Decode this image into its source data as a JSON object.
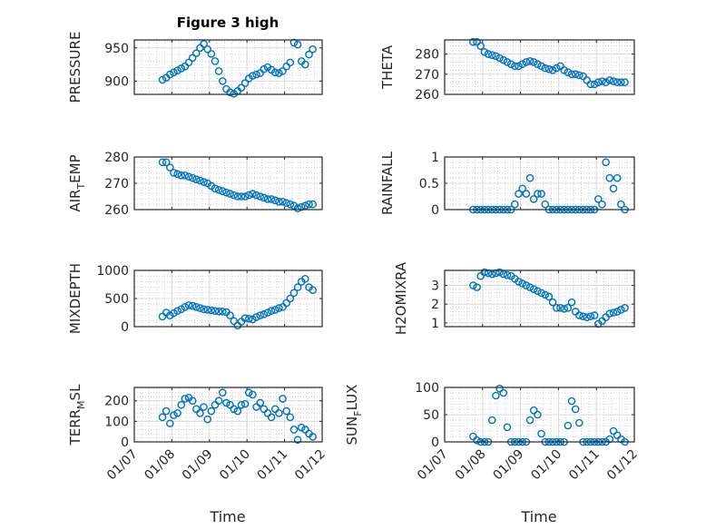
{
  "title": "Figure 3 high",
  "xlabel": "Time",
  "marker_color": "#0072BD",
  "chart_data": {
    "type": "scatter",
    "x_unit": "day of month (January)",
    "xlim": [
      7,
      12
    ],
    "xticks": [
      7,
      8,
      9,
      10,
      11,
      12
    ],
    "xtick_labels": [
      "01/07",
      "01/08",
      "01/09",
      "01/10",
      "01/11",
      "01/12"
    ],
    "x": [
      7.75,
      7.85,
      7.95,
      8.05,
      8.15,
      8.25,
      8.35,
      8.45,
      8.55,
      8.65,
      8.75,
      8.85,
      8.95,
      9.05,
      9.15,
      9.25,
      9.35,
      9.45,
      9.55,
      9.65,
      9.75,
      9.85,
      9.95,
      10.05,
      10.15,
      10.25,
      10.35,
      10.45,
      10.55,
      10.65,
      10.75,
      10.85,
      10.95,
      11.05,
      11.15,
      11.25,
      11.35,
      11.45,
      11.55,
      11.65,
      11.75
    ],
    "panels": [
      {
        "id": "pressure",
        "ylabel": [
          "PRESSURE",
          "",
          ""
        ],
        "ylim": [
          880,
          962
        ],
        "yticks": [
          900,
          950
        ],
        "ytick_labels": [
          "900",
          "950"
        ],
        "y": [
          902,
          905,
          910,
          913,
          916,
          919,
          922,
          928,
          935,
          942,
          950,
          956,
          948,
          941,
          930,
          915,
          900,
          888,
          883,
          881,
          885,
          890,
          897,
          904,
          908,
          910,
          912,
          918,
          921,
          917,
          913,
          912,
          915,
          922,
          928,
          958,
          955,
          930,
          925,
          940,
          948
        ]
      },
      {
        "id": "theta",
        "ylabel": [
          "THETA",
          "",
          ""
        ],
        "ylim": [
          260,
          287
        ],
        "yticks": [
          260,
          270,
          280
        ],
        "ytick_labels": [
          "260",
          "270",
          "280"
        ],
        "y": [
          286,
          286,
          284,
          281,
          280,
          279.5,
          279,
          278,
          277,
          276,
          275,
          274,
          274,
          275,
          276,
          276.5,
          276,
          275,
          274,
          273,
          272.5,
          272,
          273,
          274,
          272,
          271,
          270,
          270,
          269.5,
          269,
          267,
          265,
          265,
          266,
          266.5,
          266,
          267,
          266.5,
          266,
          266,
          266
        ]
      },
      {
        "id": "air-temp",
        "ylabel": [
          "AIR",
          "T",
          "EMP"
        ],
        "ylim": [
          260,
          280
        ],
        "yticks": [
          260,
          270,
          280
        ],
        "ytick_labels": [
          "260",
          "270",
          "280"
        ],
        "y": [
          278,
          278,
          276,
          274,
          273.5,
          273,
          273,
          272.5,
          272,
          271.5,
          271,
          270.5,
          270,
          269,
          268,
          267.5,
          267,
          266.5,
          266,
          265.5,
          265,
          265,
          265,
          265.5,
          266,
          265.5,
          265,
          264.5,
          264,
          264,
          263.5,
          263,
          263,
          262.5,
          262,
          261.5,
          260.5,
          261,
          261.5,
          262,
          262
        ]
      },
      {
        "id": "rainfall",
        "ylabel": [
          "RAINFALL",
          "",
          ""
        ],
        "ylim": [
          0,
          1
        ],
        "yticks": [
          0,
          0.5,
          1
        ],
        "ytick_labels": [
          "0",
          "0.5",
          "1"
        ],
        "y": [
          0,
          0,
          0,
          0,
          0,
          0,
          0,
          0,
          0,
          0,
          0,
          0.1,
          0.3,
          0.4,
          0.3,
          0.6,
          0.2,
          0.3,
          0.3,
          0.1,
          0,
          0,
          0,
          0,
          0,
          0,
          0,
          0,
          0,
          0,
          0,
          0,
          0,
          0.2,
          0.1,
          0.9,
          0.6,
          0.4,
          0.6,
          0.1,
          0
        ]
      },
      {
        "id": "mixdepth",
        "ylabel": [
          "MIXDEPTH",
          "",
          ""
        ],
        "ylim": [
          0,
          1000
        ],
        "yticks": [
          0,
          500,
          1000
        ],
        "ytick_labels": [
          "0",
          "500",
          "1000"
        ],
        "y": [
          180,
          250,
          200,
          240,
          280,
          310,
          350,
          380,
          370,
          350,
          330,
          310,
          300,
          290,
          280,
          270,
          270,
          260,
          200,
          100,
          20,
          90,
          150,
          140,
          130,
          170,
          200,
          220,
          250,
          280,
          300,
          330,
          350,
          420,
          500,
          600,
          700,
          800,
          850,
          700,
          650
        ]
      },
      {
        "id": "h2omixra",
        "ylabel": [
          "H2OMIXRA",
          "",
          ""
        ],
        "ylim": [
          0.8,
          3.8
        ],
        "yticks": [
          1,
          2,
          3
        ],
        "ytick_labels": [
          "1",
          "2",
          "3"
        ],
        "y": [
          3.0,
          2.9,
          3.5,
          3.7,
          3.65,
          3.6,
          3.65,
          3.7,
          3.6,
          3.55,
          3.5,
          3.35,
          3.2,
          3.1,
          3.0,
          2.9,
          2.8,
          2.7,
          2.6,
          2.5,
          2.4,
          2.1,
          1.8,
          1.8,
          1.75,
          1.8,
          2.1,
          1.6,
          1.4,
          1.35,
          1.3,
          1.35,
          1.4,
          0.95,
          1.1,
          1.3,
          1.5,
          1.55,
          1.6,
          1.7,
          1.8
        ]
      },
      {
        "id": "terr-msl",
        "ylabel": [
          "TERR",
          "M",
          "SL"
        ],
        "ylim": [
          0,
          265
        ],
        "yticks": [
          0,
          100,
          200
        ],
        "ytick_labels": [
          "0",
          "100",
          "200"
        ],
        "y": [
          120,
          150,
          90,
          130,
          140,
          180,
          210,
          215,
          200,
          160,
          140,
          170,
          110,
          150,
          180,
          200,
          240,
          190,
          180,
          160,
          150,
          180,
          185,
          240,
          230,
          170,
          190,
          160,
          140,
          120,
          160,
          140,
          210,
          150,
          120,
          60,
          10,
          70,
          60,
          40,
          25
        ]
      },
      {
        "id": "sun-flux",
        "ylabel": [
          "SUN",
          "F",
          "LUX"
        ],
        "ylim": [
          0,
          100
        ],
        "yticks": [
          0,
          50,
          100
        ],
        "ytick_labels": [
          "0",
          "50",
          "100"
        ],
        "y": [
          10,
          3,
          0,
          0,
          0,
          40,
          85,
          98,
          90,
          27,
          0,
          0,
          0,
          0,
          0,
          40,
          58,
          50,
          15,
          0,
          0,
          0,
          0,
          0,
          0,
          30,
          75,
          60,
          35,
          0,
          0,
          0,
          0,
          0,
          0,
          0,
          5,
          20,
          12,
          5,
          0
        ]
      }
    ]
  }
}
